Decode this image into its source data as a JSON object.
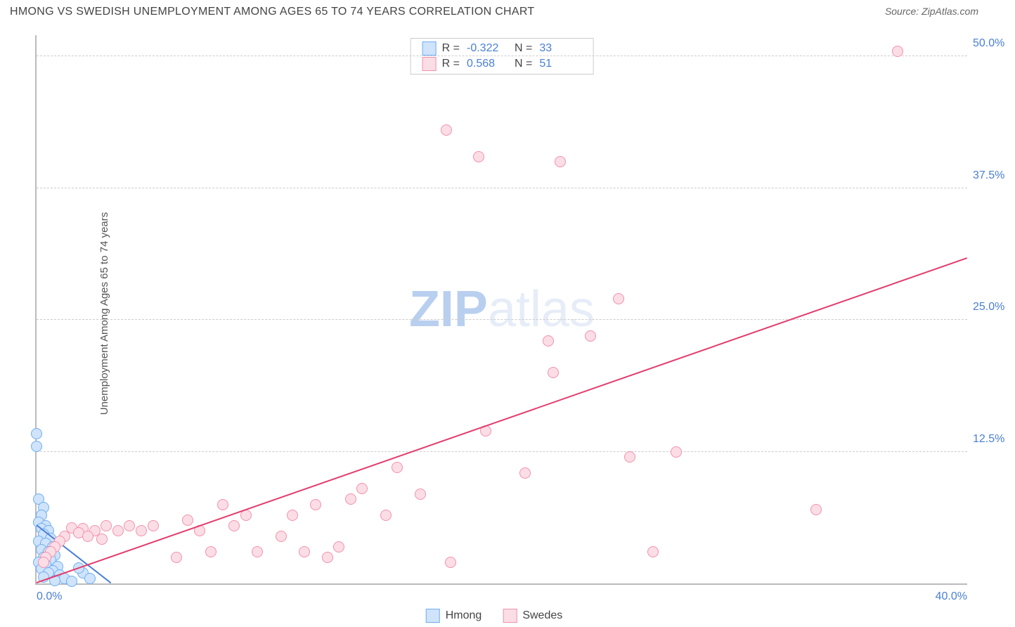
{
  "header": {
    "title": "HMONG VS SWEDISH UNEMPLOYMENT AMONG AGES 65 TO 74 YEARS CORRELATION CHART",
    "source_prefix": "Source: ",
    "source": "ZipAtlas.com"
  },
  "chart": {
    "type": "scatter",
    "ylabel": "Unemployment Among Ages 65 to 74 years",
    "xlim": [
      0,
      40
    ],
    "ylim": [
      0,
      52
    ],
    "ytick_step": 12.5,
    "yticks": [
      12.5,
      25.0,
      37.5,
      50.0
    ],
    "ytick_labels": [
      "12.5%",
      "25.0%",
      "37.5%",
      "50.0%"
    ],
    "xticks": [
      0,
      40
    ],
    "xtick_labels": [
      "0.0%",
      "40.0%"
    ],
    "ytick_color": "#4a7fd6",
    "xtick_color": "#4a7fd6",
    "grid_color": "#cccccc",
    "background_color": "#ffffff",
    "axis_color": "#bbbbbb",
    "marker_radius": 8,
    "marker_border_width": 1.5,
    "trend_line_width": 2,
    "watermark": {
      "text_bold": "ZIP",
      "text_light": "atlas",
      "bold_color": "#b9cfef",
      "light_color": "#e6edf8",
      "fontsize": 72
    },
    "series": [
      {
        "name": "Hmong",
        "fill_color": "#cfe3fb",
        "border_color": "#6faef2",
        "stats": {
          "R": "-0.322",
          "N": "33"
        },
        "trend": {
          "x1": 0,
          "y1": 5.5,
          "x2": 3.2,
          "y2": 0,
          "color": "#4a7fd6"
        },
        "points": [
          [
            0.0,
            14.2
          ],
          [
            0.0,
            13.0
          ],
          [
            0.1,
            8.0
          ],
          [
            0.3,
            7.2
          ],
          [
            0.2,
            6.5
          ],
          [
            0.1,
            5.8
          ],
          [
            0.4,
            5.5
          ],
          [
            0.2,
            5.2
          ],
          [
            0.5,
            5.0
          ],
          [
            0.3,
            4.7
          ],
          [
            0.6,
            4.3
          ],
          [
            0.1,
            4.0
          ],
          [
            0.4,
            3.8
          ],
          [
            0.7,
            3.5
          ],
          [
            0.2,
            3.2
          ],
          [
            0.5,
            3.0
          ],
          [
            0.8,
            2.7
          ],
          [
            0.3,
            2.5
          ],
          [
            0.6,
            2.3
          ],
          [
            0.1,
            2.0
          ],
          [
            0.4,
            1.8
          ],
          [
            0.9,
            1.6
          ],
          [
            0.2,
            1.4
          ],
          [
            0.7,
            1.2
          ],
          [
            0.5,
            1.0
          ],
          [
            1.0,
            0.8
          ],
          [
            0.3,
            0.6
          ],
          [
            1.2,
            0.5
          ],
          [
            0.8,
            0.3
          ],
          [
            1.5,
            0.2
          ],
          [
            2.0,
            1.0
          ],
          [
            2.3,
            0.5
          ],
          [
            1.8,
            1.5
          ]
        ]
      },
      {
        "name": "Swedes",
        "fill_color": "#fbdde6",
        "border_color": "#f291ac",
        "stats": {
          "R": "0.568",
          "N": "51"
        },
        "trend": {
          "x1": 0,
          "y1": 0,
          "x2": 40,
          "y2": 30.8,
          "color": "#e23d6d"
        },
        "points": [
          [
            37.0,
            50.5
          ],
          [
            17.6,
            43.0
          ],
          [
            19.0,
            40.5
          ],
          [
            22.5,
            40.0
          ],
          [
            25.0,
            27.0
          ],
          [
            23.8,
            23.5
          ],
          [
            22.0,
            23.0
          ],
          [
            22.2,
            20.0
          ],
          [
            19.3,
            14.5
          ],
          [
            25.5,
            12.0
          ],
          [
            27.5,
            12.5
          ],
          [
            21.0,
            10.5
          ],
          [
            33.5,
            7.0
          ],
          [
            26.5,
            3.0
          ],
          [
            17.8,
            2.0
          ],
          [
            15.5,
            11.0
          ],
          [
            14.0,
            9.0
          ],
          [
            16.5,
            8.5
          ],
          [
            15.0,
            6.5
          ],
          [
            13.5,
            8.0
          ],
          [
            12.0,
            7.5
          ],
          [
            13.0,
            3.5
          ],
          [
            12.5,
            2.5
          ],
          [
            11.5,
            3.0
          ],
          [
            11.0,
            6.5
          ],
          [
            10.5,
            4.5
          ],
          [
            9.0,
            6.5
          ],
          [
            9.5,
            3.0
          ],
          [
            8.5,
            5.5
          ],
          [
            8.0,
            7.5
          ],
          [
            7.5,
            3.0
          ],
          [
            7.0,
            5.0
          ],
          [
            6.5,
            6.0
          ],
          [
            6.0,
            2.5
          ],
          [
            5.0,
            5.5
          ],
          [
            4.5,
            5.0
          ],
          [
            4.0,
            5.5
          ],
          [
            3.5,
            5.0
          ],
          [
            3.0,
            5.5
          ],
          [
            2.5,
            5.0
          ],
          [
            2.0,
            5.2
          ],
          [
            1.5,
            5.3
          ],
          [
            1.2,
            4.5
          ],
          [
            1.0,
            4.0
          ],
          [
            0.8,
            3.5
          ],
          [
            0.6,
            3.0
          ],
          [
            0.4,
            2.5
          ],
          [
            0.3,
            2.0
          ],
          [
            1.8,
            4.8
          ],
          [
            2.2,
            4.5
          ],
          [
            2.8,
            4.2
          ]
        ]
      }
    ],
    "legend": {
      "items": [
        "Hmong",
        "Swedes"
      ]
    },
    "stats_labels": {
      "R": "R =",
      "N": "N ="
    }
  }
}
